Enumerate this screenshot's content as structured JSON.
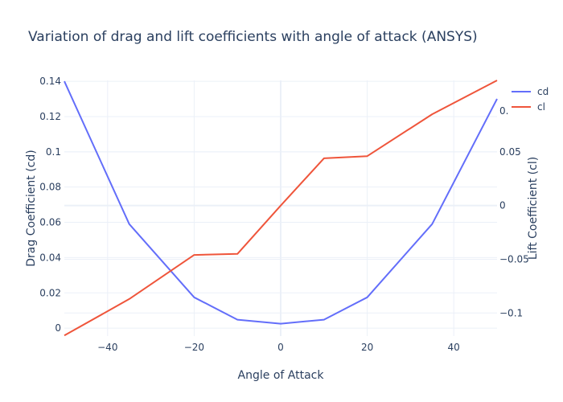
{
  "chart_data": {
    "type": "line",
    "title": "Variation of drag and lift coefficients with angle of attack (ANSYS)",
    "xlabel": "Angle of Attack",
    "ylabel": "Drag Coefficient (cd)",
    "y2label": "Lift Coefficient (cl)",
    "x": [
      -50,
      -35,
      -20,
      -10,
      0,
      10,
      20,
      35,
      50
    ],
    "xlim": [
      -50,
      50
    ],
    "ylim": [
      -0.0045,
      0.1405
    ],
    "y2lim": [
      -0.1215,
      0.1165
    ],
    "xticks": [
      -40,
      -20,
      0,
      20,
      40
    ],
    "xtick_labels": [
      "−40",
      "−20",
      "0",
      "20",
      "40"
    ],
    "yticks": [
      0,
      0.02,
      0.04,
      0.06,
      0.08,
      0.1,
      0.12,
      0.14
    ],
    "ytick_labels": [
      "0",
      "0.02",
      "0.04",
      "0.06",
      "0.08",
      "0.1",
      "0.12",
      "0.14"
    ],
    "y2ticks": [
      -0.1,
      -0.05,
      0,
      0.05
    ],
    "y2tick_labels": [
      "−0.1",
      "−0.05",
      "0",
      "0.05"
    ],
    "y2tick_partial_label": "0.",
    "grid": true,
    "legend_position": "top-right",
    "series": [
      {
        "name": "cd",
        "axis": "y",
        "color": "#636efa",
        "values": [
          0.14,
          0.059,
          0.0175,
          0.0048,
          0.0025,
          0.0048,
          0.0175,
          0.059,
          0.13
        ]
      },
      {
        "name": "cl",
        "axis": "y2",
        "color": "#ef553b",
        "values": [
          -0.121,
          -0.087,
          -0.046,
          -0.045,
          0.0,
          0.044,
          0.046,
          0.085,
          0.1165
        ]
      }
    ]
  }
}
